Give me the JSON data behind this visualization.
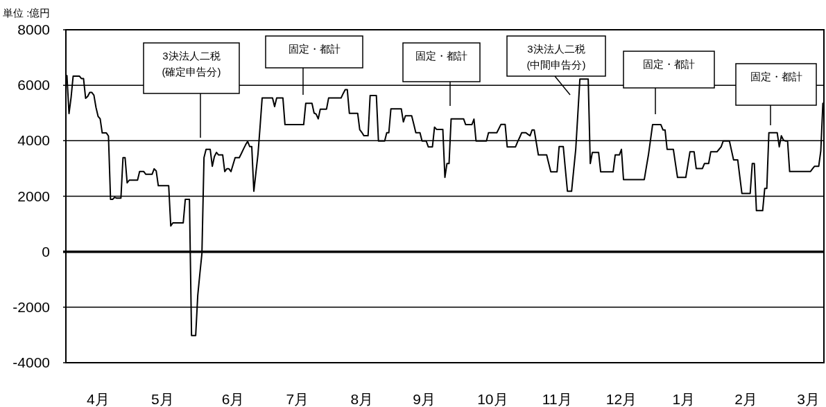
{
  "chart_data": {
    "type": "line",
    "ylabel": "単位 :億円",
    "categories": [
      null,
      null,
      null,
      null,
      null,
      null,
      null,
      null,
      null,
      null,
      null,
      null,
      null,
      null,
      null,
      "4月",
      null,
      null,
      null,
      null,
      null,
      null,
      null,
      null,
      null,
      null,
      null,
      null,
      null,
      null,
      null,
      null,
      null,
      null,
      null,
      null,
      null,
      null,
      null,
      null,
      null,
      null,
      null,
      null,
      null,
      null,
      "5月",
      null,
      null,
      null,
      null,
      null,
      null,
      null,
      null,
      null,
      null,
      null,
      null,
      null,
      null,
      null,
      null,
      null,
      null,
      null,
      null,
      null,
      null,
      null,
      null,
      null,
      null,
      null,
      null,
      null,
      null,
      null,
      null,
      null,
      "6月",
      null,
      null,
      null,
      null,
      null,
      null,
      null,
      null,
      null,
      null,
      null,
      null,
      null,
      null,
      null,
      null,
      null,
      null,
      null,
      null,
      null,
      null,
      null,
      null,
      null,
      null,
      null,
      null,
      null,
      null,
      "7月",
      null,
      null,
      null,
      null,
      null,
      null,
      null,
      null,
      null,
      null,
      null,
      null,
      null,
      null,
      null,
      null,
      null,
      null,
      null,
      null,
      null,
      null,
      null,
      null,
      null,
      null,
      null,
      null,
      null,
      null,
      "8月",
      null,
      null,
      null,
      null,
      null,
      null,
      null,
      null,
      null,
      null,
      null,
      null,
      null,
      null,
      null,
      null,
      null,
      null,
      null,
      null,
      null,
      null,
      null,
      null,
      null,
      null,
      null,
      null,
      null,
      "9月",
      null,
      null,
      null,
      null,
      null,
      null,
      null,
      null,
      null,
      null,
      null,
      null,
      null,
      null,
      null,
      null,
      null,
      null,
      null,
      null,
      null,
      null,
      null,
      null,
      null,
      null,
      null,
      null,
      null,
      null,
      null,
      null,
      "10月",
      null,
      null,
      null,
      null,
      null,
      null,
      null,
      null,
      null,
      null,
      null,
      null,
      null,
      null,
      null,
      null,
      null,
      null,
      null,
      null,
      null,
      null,
      null,
      null,
      null,
      null,
      null,
      null,
      null,
      null,
      "11月",
      null,
      null,
      null,
      null,
      null,
      null,
      null,
      null,
      null,
      null,
      null,
      null,
      null,
      null,
      null,
      null,
      null,
      null,
      null,
      null,
      null,
      null,
      null,
      null,
      null,
      null,
      null,
      null,
      null,
      null,
      "12月",
      null,
      null,
      null,
      null,
      null,
      null,
      null,
      null,
      null,
      null,
      null,
      null,
      null,
      null,
      null,
      null,
      null,
      null,
      null,
      null,
      null,
      null,
      null,
      null,
      null,
      null,
      null,
      null,
      null,
      "1月",
      null,
      null,
      null,
      null,
      null,
      null,
      null,
      null,
      null,
      null,
      null,
      null,
      null,
      null,
      null,
      null,
      null,
      null,
      null,
      null,
      null,
      null,
      null,
      null,
      null,
      null,
      null,
      null,
      null,
      "2月",
      null,
      null,
      null,
      null,
      null,
      null,
      null,
      null,
      null,
      null,
      null,
      null,
      null,
      null,
      null,
      null,
      null,
      null,
      null,
      null,
      null,
      null,
      null,
      null,
      null,
      null,
      null,
      null,
      null,
      "3月",
      null,
      null,
      null,
      null,
      null,
      null,
      null
    ],
    "series": [
      {
        "color": "#000000",
        "values": [
          6350,
          4980,
          5560,
          6330,
          6330,
          6330,
          6330,
          6240,
          6240,
          5530,
          5600,
          5740,
          5740,
          5640,
          5200,
          4880,
          4790,
          4280,
          4280,
          4280,
          4170,
          1890,
          1890,
          1960,
          1930,
          1930,
          1930,
          3390,
          3390,
          2480,
          2580,
          2580,
          2580,
          2580,
          2580,
          2890,
          2890,
          2890,
          2790,
          2790,
          2790,
          2790,
          2990,
          2910,
          2380,
          2380,
          2380,
          2380,
          2380,
          2380,
          930,
          1040,
          1040,
          1040,
          1040,
          1040,
          1040,
          1890,
          1890,
          1890,
          -3020,
          -3020,
          -3020,
          -1570,
          -800,
          -70,
          3390,
          3690,
          3690,
          3690,
          3080,
          3430,
          3580,
          3490,
          3490,
          3490,
          2890,
          2990,
          2990,
          2890,
          3140,
          3390,
          3390,
          3390,
          3540,
          3700,
          3850,
          3980,
          3790,
          3790,
          2180,
          2850,
          3520,
          4500,
          5540,
          5540,
          5540,
          5540,
          5540,
          5540,
          5230,
          5540,
          5540,
          5540,
          5540,
          4580,
          4580,
          4580,
          4580,
          4580,
          4580,
          4580,
          4580,
          4580,
          4580,
          5350,
          5350,
          5350,
          5350,
          5000,
          4960,
          4790,
          5140,
          5140,
          5140,
          5140,
          5540,
          5540,
          5540,
          5540,
          5540,
          5540,
          5540,
          5700,
          5840,
          5840,
          4990,
          4990,
          4990,
          4990,
          4990,
          4400,
          4300,
          4180,
          4180,
          4180,
          5630,
          5630,
          5630,
          5630,
          3990,
          3990,
          3990,
          3990,
          4290,
          4290,
          5150,
          5150,
          5150,
          5150,
          5150,
          5150,
          4680,
          4900,
          4900,
          4900,
          4900,
          4600,
          4290,
          4290,
          4290,
          3990,
          3990,
          3990,
          3780,
          3780,
          3780,
          4490,
          4410,
          4410,
          4410,
          4410,
          2680,
          3180,
          3180,
          4790,
          4790,
          4790,
          4790,
          4790,
          4790,
          4790,
          4580,
          4580,
          4580,
          4580,
          4780,
          3990,
          3990,
          3990,
          3990,
          3990,
          3990,
          4290,
          4290,
          4290,
          4290,
          4290,
          4440,
          4590,
          4590,
          4590,
          3780,
          3780,
          3780,
          3780,
          3780,
          3960,
          4120,
          4290,
          4290,
          4290,
          4230,
          4180,
          4390,
          4390,
          3940,
          3490,
          3490,
          3490,
          3490,
          3490,
          3180,
          2880,
          2880,
          2880,
          2880,
          3790,
          3790,
          3790,
          2980,
          2180,
          2180,
          2180,
          2940,
          3690,
          4950,
          6220,
          6220,
          6220,
          6220,
          6220,
          3180,
          3580,
          3580,
          3580,
          3580,
          2880,
          2880,
          2880,
          2880,
          2880,
          2880,
          2880,
          3490,
          3490,
          3490,
          3690,
          2600,
          2600,
          2600,
          2600,
          2600,
          2600,
          2600,
          2600,
          2600,
          2600,
          2600,
          3050,
          3490,
          4030,
          4580,
          4580,
          4580,
          4580,
          4580,
          4390,
          4390,
          3690,
          3690,
          3690,
          3690,
          3180,
          2680,
          2680,
          2680,
          2680,
          2680,
          3140,
          3600,
          3600,
          3600,
          3000,
          3000,
          3000,
          3000,
          3180,
          3180,
          3180,
          3600,
          3600,
          3600,
          3600,
          3690,
          3780,
          3990,
          3990,
          3990,
          3990,
          3650,
          3310,
          3310,
          3310,
          2700,
          2100,
          2100,
          2100,
          2100,
          2100,
          3180,
          3180,
          1480,
          1480,
          1480,
          1480,
          2280,
          2280,
          4290,
          4290,
          4290,
          4290,
          4290,
          3780,
          4180,
          4020,
          3990,
          3990,
          2890,
          2890,
          2890,
          2890,
          2890,
          2890,
          2890,
          2890,
          2890,
          2890,
          2890,
          2990,
          3080,
          3080,
          3080,
          3640,
          5350
        ]
      }
    ],
    "ylim": [
      -4000,
      8000
    ],
    "yticks": [
      -4000,
      -2000,
      0,
      2000,
      4000,
      6000,
      8000
    ],
    "grid": "y",
    "ref_lines": [
      {
        "axis": "y",
        "value": 0
      }
    ],
    "annotations": [
      "3決法人二税\n(確定申告分)",
      "固定・都計",
      "固定・都計",
      "3決法人二税\n(中間申告分)",
      "固定・都計",
      "固定・都計"
    ]
  }
}
